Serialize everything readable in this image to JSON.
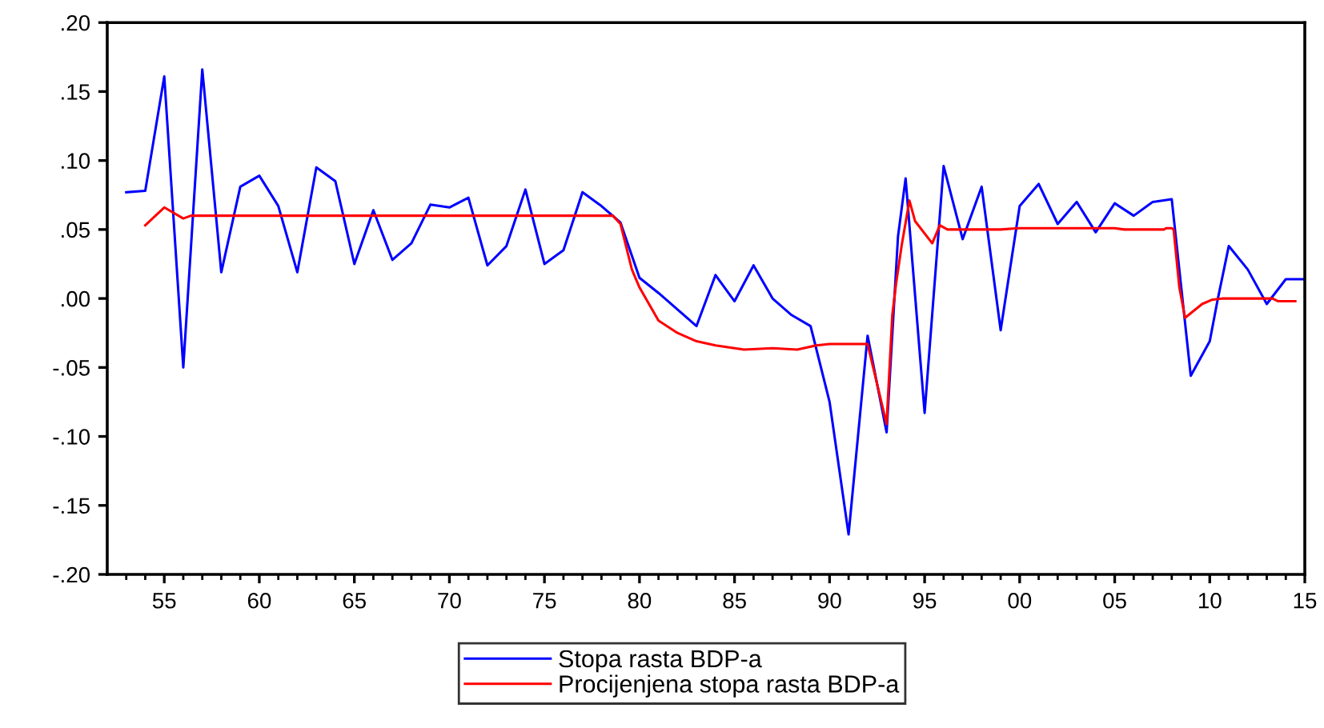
{
  "chart_data": {
    "type": "line",
    "series": [
      {
        "name": "Stopa rasta BDP-a",
        "color": "#0000ff",
        "line_style": "solid",
        "x": [
          1953,
          1954,
          1955,
          1956,
          1957,
          1958,
          1959,
          1960,
          1961,
          1962,
          1963,
          1964,
          1965,
          1966,
          1967,
          1968,
          1969,
          1970,
          1971,
          1972,
          1973,
          1974,
          1975,
          1976,
          1977,
          1978,
          1979,
          1980,
          1981,
          1982,
          1983,
          1984,
          1985,
          1986,
          1987,
          1988,
          1989,
          1990,
          1991,
          1992,
          1993,
          1993.6,
          1994,
          1995,
          1996,
          1997,
          1998,
          1999,
          2000,
          2001,
          2002,
          2003,
          2004,
          2005,
          2006,
          2007,
          2008,
          2009,
          2010,
          2010.4,
          2011,
          2012,
          2013,
          2014,
          2015
        ],
        "values": [
          0.077,
          0.078,
          0.161,
          -0.05,
          0.166,
          0.019,
          0.081,
          0.089,
          0.067,
          0.019,
          0.095,
          0.085,
          0.025,
          0.064,
          0.028,
          0.04,
          0.068,
          0.066,
          0.073,
          0.024,
          0.038,
          0.079,
          0.025,
          0.035,
          0.077,
          0.067,
          0.055,
          0.015,
          0.004,
          -0.008,
          -0.02,
          0.017,
          -0.002,
          0.024,
          0.0,
          -0.012,
          -0.02,
          -0.075,
          -0.171,
          -0.027,
          -0.097,
          0.045,
          0.087,
          -0.083,
          0.096,
          0.043,
          0.081,
          -0.023,
          0.067,
          0.083,
          0.054,
          0.07,
          0.048,
          0.069,
          0.06,
          0.07,
          0.072,
          -0.056,
          -0.031,
          -0.002,
          0.038,
          0.021,
          -0.004,
          0.014,
          0.014
        ]
      },
      {
        "name": "Procijenjena stopa rasta BDP-a",
        "color": "#ff0000",
        "line_style": "solid",
        "x": [
          1954,
          1955,
          1956,
          1956.4,
          1978.6,
          1979,
          1979.6,
          1980,
          1981,
          1982,
          1983,
          1984,
          1985.5,
          1987,
          1988.3,
          1989.3,
          1990,
          1992,
          1993,
          1993.3,
          1993.5,
          1993.8,
          1994.2,
          1994.5,
          1995.4,
          1995.8,
          1996.2,
          1999,
          2000,
          2005,
          2005.5,
          2007.6,
          2007.7,
          2008,
          2008.1,
          2008.4,
          2008.7,
          2009.6,
          2010.1,
          2010.7,
          2013.3,
          2013.6,
          2014.5
        ],
        "values": [
          0.053,
          0.066,
          0.058,
          0.06,
          0.06,
          0.054,
          0.021,
          0.008,
          -0.016,
          -0.025,
          -0.031,
          -0.034,
          -0.037,
          -0.036,
          -0.037,
          -0.034,
          -0.033,
          -0.033,
          -0.091,
          -0.012,
          0.011,
          0.039,
          0.071,
          0.056,
          0.04,
          0.053,
          0.05,
          0.05,
          0.051,
          0.051,
          0.05,
          0.05,
          0.051,
          0.051,
          0.05,
          0.008,
          -0.014,
          -0.004,
          -0.001,
          0.0,
          0.0,
          -0.002,
          -0.002
        ]
      }
    ],
    "xlim": [
      1952,
      2015
    ],
    "xticks": [
      {
        "value": 1953,
        "label": null
      },
      {
        "value": 1954,
        "label": null
      },
      {
        "value": 1955,
        "label": "55"
      },
      {
        "value": 1956,
        "label": null
      },
      {
        "value": 1957,
        "label": null
      },
      {
        "value": 1958,
        "label": null
      },
      {
        "value": 1959,
        "label": null
      },
      {
        "value": 1960,
        "label": "60"
      },
      {
        "value": 1961,
        "label": null
      },
      {
        "value": 1962,
        "label": null
      },
      {
        "value": 1963,
        "label": null
      },
      {
        "value": 1964,
        "label": null
      },
      {
        "value": 1965,
        "label": "65"
      },
      {
        "value": 1966,
        "label": null
      },
      {
        "value": 1967,
        "label": null
      },
      {
        "value": 1968,
        "label": null
      },
      {
        "value": 1969,
        "label": null
      },
      {
        "value": 1970,
        "label": "70"
      },
      {
        "value": 1971,
        "label": null
      },
      {
        "value": 1972,
        "label": null
      },
      {
        "value": 1973,
        "label": null
      },
      {
        "value": 1974,
        "label": null
      },
      {
        "value": 1975,
        "label": "75"
      },
      {
        "value": 1976,
        "label": null
      },
      {
        "value": 1977,
        "label": null
      },
      {
        "value": 1978,
        "label": null
      },
      {
        "value": 1979,
        "label": null
      },
      {
        "value": 1980,
        "label": "80"
      },
      {
        "value": 1981,
        "label": null
      },
      {
        "value": 1982,
        "label": null
      },
      {
        "value": 1983,
        "label": null
      },
      {
        "value": 1984,
        "label": null
      },
      {
        "value": 1985,
        "label": "85"
      },
      {
        "value": 1986,
        "label": null
      },
      {
        "value": 1987,
        "label": null
      },
      {
        "value": 1988,
        "label": null
      },
      {
        "value": 1989,
        "label": null
      },
      {
        "value": 1990,
        "label": "90"
      },
      {
        "value": 1991,
        "label": null
      },
      {
        "value": 1992,
        "label": null
      },
      {
        "value": 1993,
        "label": null
      },
      {
        "value": 1994,
        "label": null
      },
      {
        "value": 1995,
        "label": "95"
      },
      {
        "value": 1996,
        "label": null
      },
      {
        "value": 1997,
        "label": null
      },
      {
        "value": 1998,
        "label": null
      },
      {
        "value": 1999,
        "label": null
      },
      {
        "value": 2000,
        "label": "00"
      },
      {
        "value": 2001,
        "label": null
      },
      {
        "value": 2002,
        "label": null
      },
      {
        "value": 2003,
        "label": null
      },
      {
        "value": 2004,
        "label": null
      },
      {
        "value": 2005,
        "label": "05"
      },
      {
        "value": 2006,
        "label": null
      },
      {
        "value": 2007,
        "label": null
      },
      {
        "value": 2008,
        "label": null
      },
      {
        "value": 2009,
        "label": null
      },
      {
        "value": 2010,
        "label": "10"
      },
      {
        "value": 2011,
        "label": null
      },
      {
        "value": 2012,
        "label": null
      },
      {
        "value": 2013,
        "label": null
      },
      {
        "value": 2014,
        "label": null
      },
      {
        "value": 2015,
        "label": "15"
      }
    ],
    "ylim": [
      -0.2,
      0.2
    ],
    "yticks": [
      {
        "value": -0.2,
        "label": "-.20"
      },
      {
        "value": -0.15,
        "label": "-.15"
      },
      {
        "value": -0.1,
        "label": "-.10"
      },
      {
        "value": -0.05,
        "label": "-.05"
      },
      {
        "value": 0,
        "label": ".00"
      },
      {
        "value": 0.05,
        "label": ".05"
      },
      {
        "value": 0.1,
        "label": ".10"
      },
      {
        "value": 0.15,
        "label": ".15"
      },
      {
        "value": 0.2,
        "label": ".20"
      }
    ],
    "legend": "bottom"
  }
}
